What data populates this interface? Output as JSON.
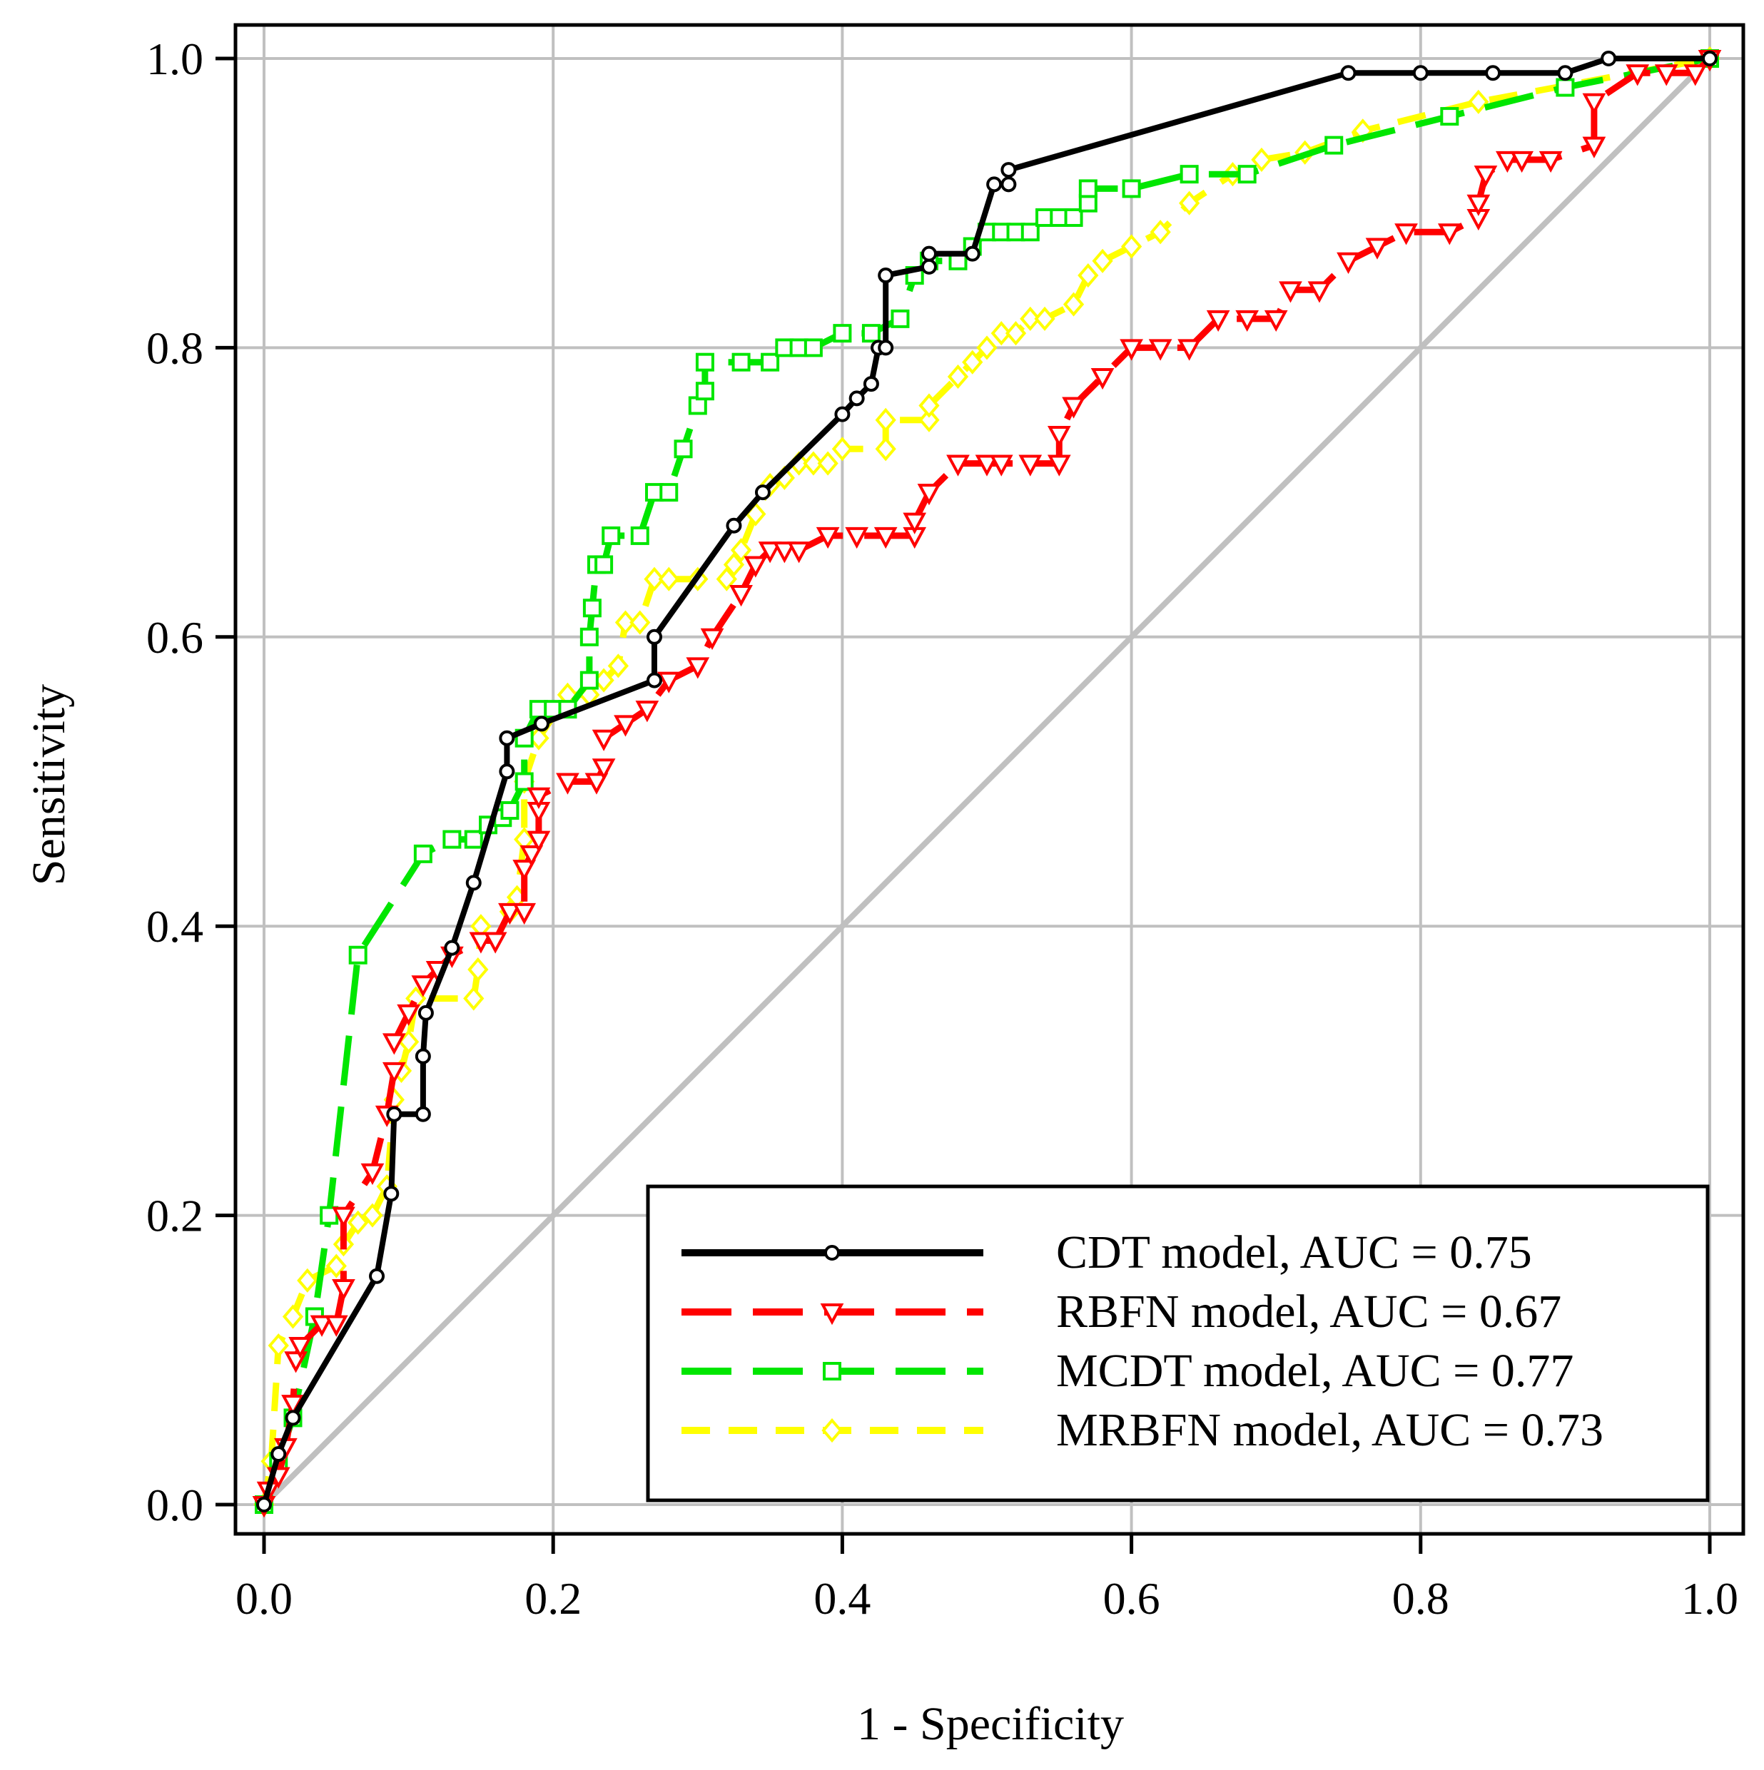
{
  "chart_data": {
    "type": "line",
    "title": "",
    "xlabel": "1 - Specificity",
    "ylabel": "Sensitivity",
    "xlim": [
      0,
      1
    ],
    "ylim": [
      0,
      1
    ],
    "grid": true,
    "legend_position": "bottom-right",
    "x_ticks": [
      "0.0",
      "0.2",
      "0.4",
      "0.6",
      "0.8",
      "1.0"
    ],
    "y_ticks": [
      "0.0",
      "0.2",
      "0.4",
      "0.6",
      "0.8",
      "1.0"
    ],
    "reference_line": {
      "name": "chance",
      "color": "#c0c0c0",
      "x": [
        0,
        1
      ],
      "y": [
        0,
        1
      ]
    },
    "series": [
      {
        "name": "CDT model, AUC = 0.75",
        "color": "#000000",
        "dash": "solid",
        "marker": "circle",
        "x": [
          0,
          0.01,
          0.02,
          0.078,
          0.088,
          0.09,
          0.11,
          0.11,
          0.112,
          0.13,
          0.145,
          0.168,
          0.168,
          0.192,
          0.27,
          0.27,
          0.325,
          0.345,
          0.4,
          0.41,
          0.42,
          0.425,
          0.43,
          0.43,
          0.46,
          0.46,
          0.49,
          0.505,
          0.515,
          0.515,
          0.75,
          0.8,
          0.85,
          0.9,
          0.93,
          1.0
        ],
        "y": [
          0,
          0.035,
          0.06,
          0.158,
          0.215,
          0.27,
          0.27,
          0.31,
          0.34,
          0.385,
          0.43,
          0.507,
          0.53,
          0.54,
          0.57,
          0.6,
          0.677,
          0.7,
          0.754,
          0.765,
          0.775,
          0.8,
          0.8,
          0.85,
          0.856,
          0.865,
          0.865,
          0.913,
          0.913,
          0.923,
          0.99,
          0.99,
          0.99,
          0.99,
          1.0,
          1.0
        ]
      },
      {
        "name": "RBFN model, AUC = 0.67",
        "color": "#ff0000",
        "dash": "long-dash",
        "marker": "triangle-down",
        "x": [
          0,
          0.003,
          0.01,
          0.015,
          0.02,
          0.022,
          0.025,
          0.04,
          0.05,
          0.055,
          0.055,
          0.075,
          0.085,
          0.09,
          0.09,
          0.1,
          0.11,
          0.12,
          0.13,
          0.15,
          0.16,
          0.17,
          0.18,
          0.18,
          0.185,
          0.19,
          0.19,
          0.19,
          0.21,
          0.23,
          0.235,
          0.235,
          0.25,
          0.265,
          0.28,
          0.3,
          0.31,
          0.33,
          0.34,
          0.35,
          0.36,
          0.37,
          0.39,
          0.41,
          0.43,
          0.45,
          0.45,
          0.46,
          0.48,
          0.5,
          0.51,
          0.53,
          0.55,
          0.55,
          0.56,
          0.58,
          0.6,
          0.62,
          0.64,
          0.66,
          0.68,
          0.7,
          0.71,
          0.73,
          0.75,
          0.77,
          0.79,
          0.82,
          0.84,
          0.84,
          0.845,
          0.86,
          0.87,
          0.89,
          0.92,
          0.92,
          0.95,
          0.97,
          0.99,
          1.0
        ],
        "y": [
          0,
          0.01,
          0.02,
          0.04,
          0.07,
          0.1,
          0.11,
          0.125,
          0.125,
          0.15,
          0.2,
          0.23,
          0.27,
          0.3,
          0.32,
          0.34,
          0.36,
          0.37,
          0.38,
          0.39,
          0.39,
          0.41,
          0.41,
          0.44,
          0.45,
          0.46,
          0.48,
          0.49,
          0.5,
          0.5,
          0.51,
          0.53,
          0.54,
          0.55,
          0.57,
          0.58,
          0.6,
          0.63,
          0.65,
          0.66,
          0.66,
          0.66,
          0.67,
          0.67,
          0.67,
          0.67,
          0.68,
          0.7,
          0.72,
          0.72,
          0.72,
          0.72,
          0.72,
          0.74,
          0.76,
          0.78,
          0.8,
          0.8,
          0.8,
          0.82,
          0.82,
          0.82,
          0.84,
          0.84,
          0.86,
          0.87,
          0.88,
          0.88,
          0.89,
          0.9,
          0.92,
          0.93,
          0.93,
          0.93,
          0.94,
          0.97,
          0.99,
          0.99,
          0.99,
          1.0
        ]
      },
      {
        "name": "MCDT model, AUC = 0.77",
        "color": "#00e600",
        "dash": "long-dash",
        "marker": "square",
        "x": [
          0,
          0.01,
          0.02,
          0.035,
          0.045,
          0.065,
          0.11,
          0.13,
          0.145,
          0.155,
          0.165,
          0.17,
          0.18,
          0.18,
          0.19,
          0.2,
          0.21,
          0.225,
          0.225,
          0.227,
          0.23,
          0.235,
          0.24,
          0.26,
          0.27,
          0.28,
          0.29,
          0.3,
          0.305,
          0.305,
          0.33,
          0.35,
          0.36,
          0.37,
          0.38,
          0.4,
          0.42,
          0.44,
          0.45,
          0.46,
          0.48,
          0.49,
          0.5,
          0.51,
          0.52,
          0.53,
          0.54,
          0.55,
          0.56,
          0.57,
          0.57,
          0.6,
          0.64,
          0.68,
          0.74,
          0.82,
          0.9,
          1.0
        ],
        "y": [
          0,
          0.03,
          0.06,
          0.13,
          0.2,
          0.38,
          0.45,
          0.46,
          0.46,
          0.47,
          0.475,
          0.48,
          0.5,
          0.53,
          0.55,
          0.55,
          0.55,
          0.57,
          0.6,
          0.62,
          0.65,
          0.65,
          0.67,
          0.67,
          0.7,
          0.7,
          0.73,
          0.76,
          0.77,
          0.79,
          0.79,
          0.79,
          0.8,
          0.8,
          0.8,
          0.81,
          0.81,
          0.82,
          0.85,
          0.86,
          0.86,
          0.87,
          0.88,
          0.88,
          0.88,
          0.88,
          0.89,
          0.89,
          0.89,
          0.9,
          0.91,
          0.91,
          0.92,
          0.92,
          0.94,
          0.96,
          0.98,
          1.0
        ]
      },
      {
        "name": "MRBFN model, AUC = 0.73",
        "color": "#ffff00",
        "dash": "dash",
        "marker": "diamond",
        "x": [
          0,
          0.005,
          0.01,
          0.02,
          0.03,
          0.05,
          0.055,
          0.065,
          0.075,
          0.085,
          0.09,
          0.095,
          0.1,
          0.105,
          0.145,
          0.148,
          0.15,
          0.17,
          0.175,
          0.18,
          0.18,
          0.19,
          0.21,
          0.225,
          0.235,
          0.245,
          0.25,
          0.26,
          0.27,
          0.28,
          0.3,
          0.32,
          0.325,
          0.33,
          0.34,
          0.35,
          0.36,
          0.37,
          0.38,
          0.39,
          0.4,
          0.43,
          0.43,
          0.46,
          0.46,
          0.48,
          0.49,
          0.5,
          0.51,
          0.52,
          0.53,
          0.54,
          0.56,
          0.57,
          0.58,
          0.6,
          0.62,
          0.64,
          0.67,
          0.69,
          0.72,
          0.76,
          0.84,
          1.0
        ],
        "y": [
          0,
          0.03,
          0.11,
          0.13,
          0.155,
          0.165,
          0.18,
          0.195,
          0.2,
          0.22,
          0.28,
          0.3,
          0.32,
          0.35,
          0.35,
          0.37,
          0.4,
          0.41,
          0.42,
          0.46,
          0.5,
          0.53,
          0.56,
          0.56,
          0.57,
          0.58,
          0.61,
          0.61,
          0.64,
          0.64,
          0.64,
          0.64,
          0.65,
          0.66,
          0.685,
          0.705,
          0.71,
          0.72,
          0.72,
          0.72,
          0.73,
          0.73,
          0.75,
          0.75,
          0.76,
          0.78,
          0.79,
          0.8,
          0.81,
          0.81,
          0.82,
          0.82,
          0.83,
          0.85,
          0.86,
          0.87,
          0.88,
          0.9,
          0.92,
          0.93,
          0.935,
          0.95,
          0.97,
          1.0
        ]
      }
    ]
  }
}
